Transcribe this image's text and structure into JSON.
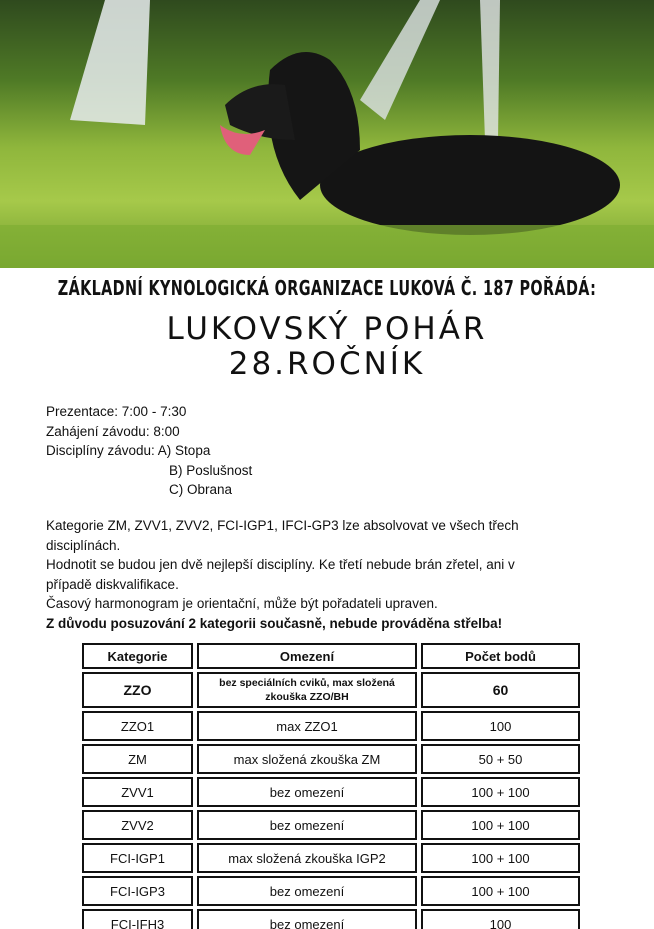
{
  "header": {
    "organizer": "ZÁKLADNÍ KYNOLOGICKÁ ORGANIZACE LUKOVÁ Č. 187 POŘÁDÁ:",
    "title_line1": "LUKOVSKÝ POHÁR",
    "title_line2": "28.ROČNÍK"
  },
  "schedule": {
    "presentation": "Prezentace: 7:00 - 7:30",
    "start": "Zahájení závodu: 8:00",
    "disciplines_label": "Disciplíny závodu: A) Stopa",
    "discipline_b": "B) Poslušnost",
    "discipline_c": "C) Obrana"
  },
  "notes": {
    "line1": "Kategorie ZM, ZVV1, ZVV2, FCI-IGP1, IFCI-GP3 lze absolvovat ve všech třech",
    "line2": "disciplínách.",
    "line3": "Hodnotit se budou jen dvě nejlepší disciplíny. Ke třetí nebude brán zřetel, ani v",
    "line4": "případě diskvalifikace.",
    "line5": "Časový harmonogram je orientační, může být pořadateli upraven.",
    "bold": "Z důvodu posuzování 2 kategorii současně, nebude prováděna střelba!"
  },
  "table": {
    "headers": [
      "Kategorie",
      "Omezení",
      "Počet bodů"
    ],
    "rows": [
      [
        "ZZO",
        "bez speciálních cviků, max složená zkouška ZZO/BH",
        "60"
      ],
      [
        "ZZO1",
        "max ZZO1",
        "100"
      ],
      [
        "ZM",
        "max složená zkouška ZM",
        "50 + 50"
      ],
      [
        "ZVV1",
        "bez omezení",
        "100 + 100"
      ],
      [
        "ZVV2",
        "bez omezení",
        "100 + 100"
      ],
      [
        "FCI-IGP1",
        "max složená zkouška IGP2",
        "100 + 100"
      ],
      [
        "FCI-IGP3",
        "bez omezení",
        "100 + 100"
      ],
      [
        "FCI-IFH3",
        "bez omezení",
        "100"
      ]
    ]
  }
}
